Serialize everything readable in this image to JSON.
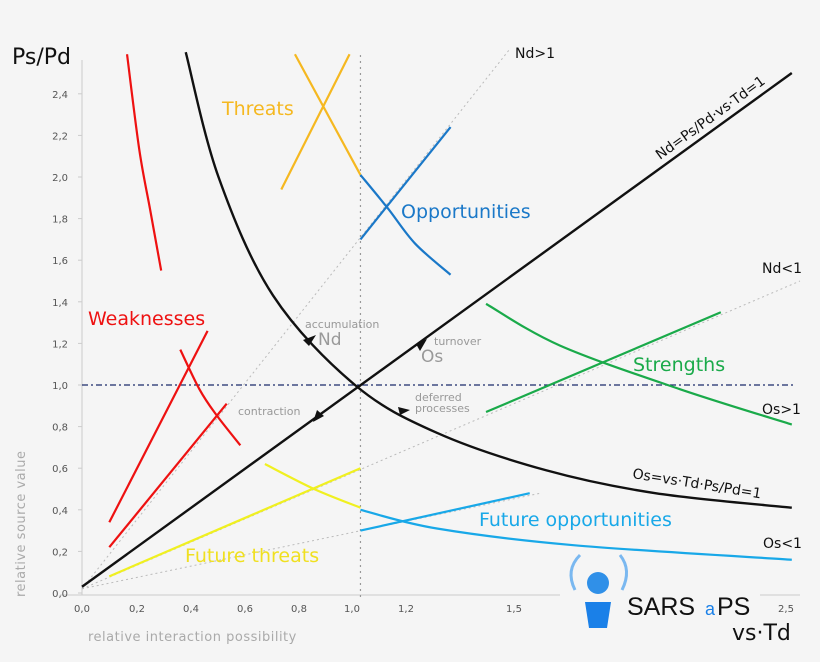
{
  "chart_data": {
    "type": "line",
    "ylabel_top": "Ps/Pd",
    "xlabel_right": "vs·Td",
    "xlabel": "relative interaction possibility",
    "ylabel": "relative source value",
    "xlim": [
      0,
      2.6
    ],
    "ylim": [
      0,
      2.5
    ],
    "x_ticks": [
      "0,0",
      "0,2",
      "0,4",
      "0,6",
      "0,8",
      "1,0",
      "1,2",
      "1,5",
      "2,5"
    ],
    "x_tick_values": [
      0,
      0.2,
      0.4,
      0.6,
      0.8,
      1.0,
      1.2,
      1.5,
      2.5
    ],
    "y_ticks": [
      "0,0",
      "0,2",
      "0,4",
      "0,6",
      "0,8",
      "1,0",
      "1,2",
      "1,4",
      "1,6",
      "1,8",
      "2,0",
      "2,2",
      "2,4"
    ],
    "y_tick_values": [
      0,
      0.2,
      0.4,
      0.6,
      0.8,
      1.0,
      1.2,
      1.4,
      1.6,
      1.8,
      2.0,
      2.2,
      2.4
    ],
    "grid": false,
    "colors": {
      "black": "#111111",
      "red": "#ee1111",
      "orange": "#f5b820",
      "blue": "#1a78c8",
      "green": "#1aaa4a",
      "yellow": "#f0f020",
      "lightblue": "#18a8e8",
      "refline": "#1a2a6a",
      "dotted": "#bbbbbb"
    },
    "reference_lines": {
      "horizontal_y": 1.0,
      "vertical_x": 1.02
    },
    "main_curves": [
      {
        "name": "Nd=Ps/Pd·vs·Td=1",
        "kind": "line",
        "points": [
          [
            0.0,
            0.03
          ],
          [
            2.6,
            2.5
          ]
        ],
        "color": "black"
      },
      {
        "name": "Os=vs·Td·Ps/Pd=1",
        "kind": "hyperbola",
        "points": [
          [
            0.38,
            2.6
          ],
          [
            0.5,
            2.0
          ],
          [
            0.7,
            1.43
          ],
          [
            1.0,
            1.0
          ],
          [
            1.3,
            0.77
          ],
          [
            1.7,
            0.59
          ],
          [
            2.1,
            0.48
          ],
          [
            2.6,
            0.41
          ]
        ],
        "color": "black"
      }
    ],
    "guide_lines": [
      {
        "name": "Nd>1",
        "points": [
          [
            0,
            0.02
          ],
          [
            1.57,
            2.62
          ]
        ]
      },
      {
        "name": "Nd<1",
        "points": [
          [
            0,
            0.02
          ],
          [
            2.63,
            1.5
          ]
        ]
      },
      {
        "name": "",
        "points": [
          [
            0,
            0.02
          ],
          [
            1.68,
            0.48
          ]
        ]
      }
    ],
    "regions": [
      {
        "name": "Weaknesses",
        "color": "red",
        "segments": [
          [
            [
              0.165,
              2.59
            ],
            [
              0.21,
              2.13
            ],
            [
              0.25,
              1.84
            ],
            [
              0.29,
              1.55
            ]
          ],
          [
            [
              0.1,
              0.34
            ],
            [
              0.46,
              1.26
            ]
          ],
          [
            [
              0.1,
              0.22
            ],
            [
              0.53,
              0.91
            ]
          ],
          [
            [
              0.36,
              1.17
            ],
            [
              0.43,
              0.98
            ],
            [
              0.49,
              0.86
            ],
            [
              0.58,
              0.71
            ]
          ]
        ]
      },
      {
        "name": "Threats",
        "color": "orange",
        "segments": [
          [
            [
              0.78,
              2.59
            ],
            [
              1.02,
              2.01
            ]
          ],
          [
            [
              0.73,
              1.94
            ],
            [
              0.98,
              2.59
            ]
          ]
        ]
      },
      {
        "name": "Opportunities",
        "color": "blue",
        "segments": [
          [
            [
              1.02,
              1.7
            ],
            [
              1.35,
              2.24
            ]
          ],
          [
            [
              1.02,
              2.01
            ],
            [
              1.12,
              1.85
            ],
            [
              1.22,
              1.68
            ],
            [
              1.35,
              1.53
            ]
          ]
        ]
      },
      {
        "name": "Strengths",
        "color": "green",
        "segments": [
          [
            [
              1.48,
              1.39
            ],
            [
              1.75,
              1.19
            ],
            [
              2.19,
              0.98
            ],
            [
              2.6,
              0.81
            ]
          ],
          [
            [
              1.48,
              0.87
            ],
            [
              2.34,
              1.35
            ]
          ]
        ]
      },
      {
        "name": "Future threats",
        "color": "yellow",
        "segments": [
          [
            [
              0.1,
              0.08
            ],
            [
              1.02,
              0.6
            ]
          ],
          [
            [
              0.67,
              0.62
            ],
            [
              0.85,
              0.5
            ],
            [
              1.02,
              0.41
            ]
          ]
        ]
      },
      {
        "name": "Future opportunities",
        "color": "lightblue",
        "segments": [
          [
            [
              1.02,
              0.3
            ],
            [
              1.64,
              0.48
            ]
          ],
          [
            [
              1.02,
              0.4
            ],
            [
              1.3,
              0.31
            ],
            [
              1.8,
              0.23
            ],
            [
              2.6,
              0.16
            ]
          ]
        ]
      }
    ],
    "annotations": {
      "nd_gt1": "Nd>1",
      "nd_lt1": "Nd<1",
      "os_gt1": "Os>1",
      "os_lt1": "Os<1",
      "nd_eq": "Nd=Ps/Pd·vs·Td=1",
      "os_eq": "Os=vs·Td·Ps/Pd=1",
      "accumulation": "accumulation",
      "nd": "Nd",
      "turnover": "turnover",
      "os": "Os",
      "contraction": "contraction",
      "deferred1": "deferred",
      "deferred2": "processes"
    }
  },
  "logo": {
    "text1": "SARS",
    "text2": "a",
    "text3": "PS"
  }
}
